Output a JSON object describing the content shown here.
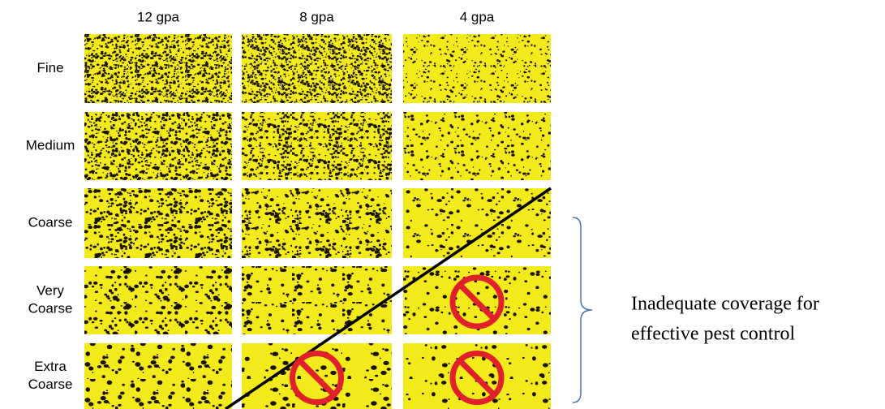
{
  "columns": [
    "12 gpa",
    "8 gpa",
    "4 gpa"
  ],
  "rows": [
    {
      "label": [
        "Fine"
      ],
      "inadequate": [
        false,
        false,
        false
      ]
    },
    {
      "label": [
        "Medium"
      ],
      "inadequate": [
        false,
        false,
        false
      ]
    },
    {
      "label": [
        "Coarse"
      ],
      "inadequate": [
        false,
        false,
        false
      ]
    },
    {
      "label": [
        "Very",
        "Coarse"
      ],
      "inadequate": [
        false,
        false,
        true
      ]
    },
    {
      "label": [
        "Extra",
        "Coarse"
      ],
      "inadequate": [
        false,
        true,
        true
      ]
    }
  ],
  "annotation": [
    "Inadequate coverage for",
    "effective pest control"
  ]
}
